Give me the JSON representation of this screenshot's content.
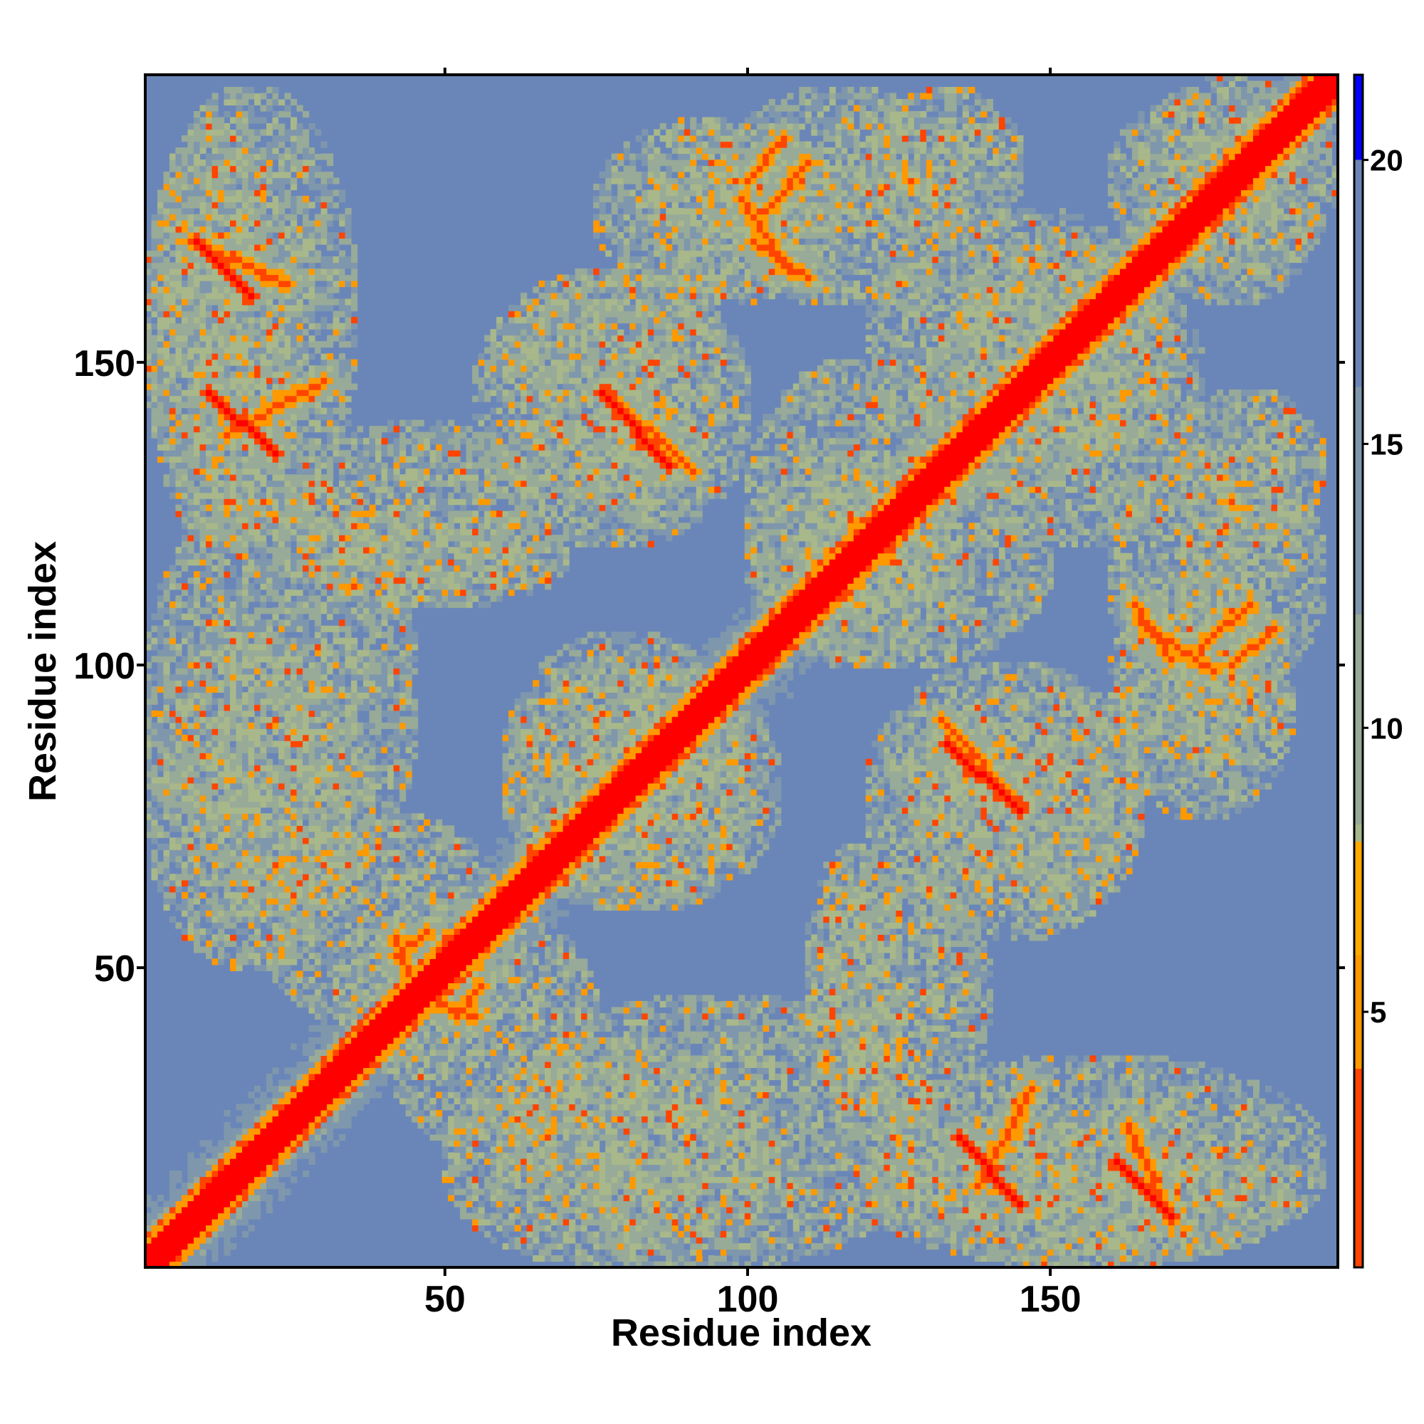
{
  "chart_data": {
    "type": "heatmap",
    "title": "",
    "xlabel": "Residue index",
    "ylabel": "Residue index",
    "n_residues": 197,
    "xlim": [
      1,
      197
    ],
    "ylim": [
      1,
      197
    ],
    "x_ticks": [
      50,
      100,
      150
    ],
    "x_tick_labels": [
      "50",
      "100",
      "150"
    ],
    "y_ticks": [
      50,
      100,
      150
    ],
    "y_tick_labels": [
      "50",
      "100",
      "150"
    ],
    "colorbar": {
      "range": [
        0.5,
        21.5
      ],
      "ticks": [
        5,
        10,
        15,
        20
      ],
      "tick_labels": [
        "5",
        "10",
        "15",
        "20"
      ],
      "colors": [
        {
          "value": 0.5,
          "color": "#ff0000"
        },
        {
          "value": 4.0,
          "color": "#ff4400"
        },
        {
          "value": 6.0,
          "color": "#ff9900"
        },
        {
          "value": 8.0,
          "color": "#ffaa00"
        },
        {
          "value": 8.3,
          "color": "#a8b88a"
        },
        {
          "value": 12.0,
          "color": "#98aa98"
        },
        {
          "value": 16.0,
          "color": "#7f97ac"
        },
        {
          "value": 20.0,
          "color": "#6a86b8"
        },
        {
          "value": 21.0,
          "color": "#0000ff"
        }
      ]
    },
    "background_value": 21,
    "diagonal_contact_band": {
      "from": 1,
      "to": 197
    },
    "contact_segments": [
      {
        "x": [
          1,
          45
        ],
        "y": [
          1,
          45
        ],
        "value": 1
      },
      {
        "x": [
          9,
          18
        ],
        "y": [
          170,
          161
        ],
        "value": 4
      },
      {
        "x": [
          11,
          22
        ],
        "y": [
          145,
          135
        ],
        "value": 4
      },
      {
        "x": [
          76,
          87
        ],
        "y": [
          145,
          133
        ],
        "value": 4
      },
      {
        "x": [
          100,
          106
        ],
        "y": [
          180,
          187
        ],
        "value": 5
      },
      {
        "x": [
          99,
          107
        ],
        "y": [
          177,
          165
        ],
        "value": 5
      },
      {
        "x": [
          138,
          147
        ],
        "y": [
          14,
          30
        ],
        "value": 5
      },
      {
        "x": [
          163,
          170
        ],
        "y": [
          24,
          8
        ],
        "value": 5
      },
      {
        "x": [
          132,
          145
        ],
        "y": [
          91,
          77
        ],
        "value": 5
      },
      {
        "x": [
          164,
          170
        ],
        "y": [
          110,
          101
        ],
        "value": 5
      },
      {
        "x": [
          175,
          183
        ],
        "y": [
          103,
          110
        ],
        "value": 5
      },
      {
        "x": [
          42,
          47
        ],
        "y": [
          52,
          56
        ],
        "value": 5
      },
      {
        "x": [
          49,
          55
        ],
        "y": [
          44,
          42
        ],
        "value": 5
      }
    ],
    "contact_regions": [
      {
        "x": [
          1,
          25
        ],
        "y": [
          120,
          190
        ]
      },
      {
        "x": [
          1,
          45
        ],
        "y": [
          60,
          130
        ]
      },
      {
        "x": [
          25,
          70
        ],
        "y": [
          110,
          125
        ]
      },
      {
        "x": [
          55,
          100
        ],
        "y": [
          120,
          165
        ]
      },
      {
        "x": [
          75,
          115
        ],
        "y": [
          160,
          190
        ]
      },
      {
        "x": [
          120,
          145
        ],
        "y": [
          170,
          195
        ]
      },
      {
        "x": [
          130,
          175
        ],
        "y": [
          120,
          170
        ]
      },
      {
        "x": [
          160,
          195
        ],
        "y": [
          95,
          135
        ]
      },
      {
        "x": [
          125,
          165
        ],
        "y": [
          60,
          95
        ]
      },
      {
        "x": [
          160,
          190
        ],
        "y": [
          85,
          100
        ]
      },
      {
        "x": [
          110,
          140
        ],
        "y": [
          25,
          65
        ]
      },
      {
        "x": [
          120,
          195
        ],
        "y": [
          1,
          35
        ]
      },
      {
        "x": [
          50,
          105
        ],
        "y": [
          1,
          35
        ]
      },
      {
        "x": [
          40,
          75
        ],
        "y": [
          20,
          60
        ]
      },
      {
        "x": [
          60,
          105
        ],
        "y": [
          60,
          100
        ]
      },
      {
        "x": [
          100,
          135
        ],
        "y": [
          100,
          150
        ]
      },
      {
        "x": [
          165,
          195
        ],
        "y": [
          160,
          197
        ]
      }
    ]
  }
}
